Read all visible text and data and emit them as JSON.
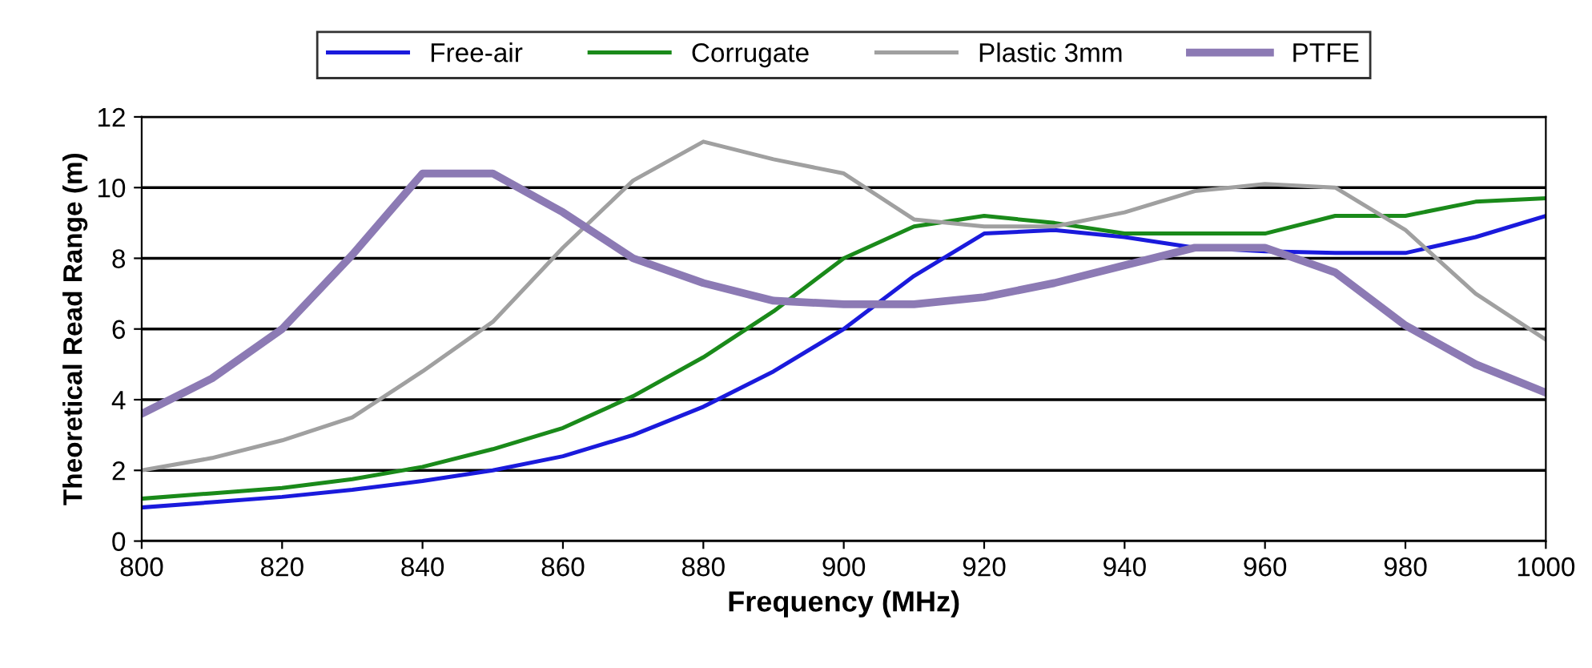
{
  "chart_data": {
    "type": "line",
    "xlabel": "Frequency (MHz)",
    "ylabel": "Theoretical Read Range (m)",
    "x": [
      800,
      810,
      820,
      830,
      840,
      850,
      860,
      870,
      880,
      890,
      900,
      910,
      920,
      930,
      940,
      950,
      960,
      970,
      980,
      990,
      1000
    ],
    "series": [
      {
        "name": "Free-air",
        "color": "#1a1adc",
        "values": [
          0.95,
          1.1,
          1.25,
          1.45,
          1.7,
          2.0,
          2.4,
          3.0,
          3.8,
          4.8,
          6.0,
          7.5,
          8.7,
          8.8,
          8.6,
          8.3,
          8.2,
          8.15,
          8.15,
          8.6,
          9.2
        ]
      },
      {
        "name": "Corrugate",
        "color": "#1a8a1a",
        "values": [
          1.2,
          1.35,
          1.5,
          1.75,
          2.1,
          2.6,
          3.2,
          4.1,
          5.2,
          6.5,
          8.0,
          8.9,
          9.2,
          9.0,
          8.7,
          8.7,
          8.7,
          9.2,
          9.2,
          9.6,
          9.7
        ]
      },
      {
        "name": "Plastic 3mm",
        "color": "#a0a0a0",
        "values": [
          2.0,
          2.35,
          2.85,
          3.5,
          4.8,
          6.2,
          8.3,
          10.2,
          11.3,
          10.8,
          10.4,
          9.1,
          8.9,
          8.9,
          9.3,
          9.9,
          10.1,
          10.0,
          8.8,
          7.0,
          5.7
        ]
      },
      {
        "name": "PTFE",
        "color": "#8c7ab4",
        "values": [
          3.6,
          4.6,
          6.0,
          8.1,
          10.4,
          10.4,
          9.3,
          8.0,
          7.3,
          6.8,
          6.7,
          6.7,
          6.9,
          7.3,
          7.8,
          8.3,
          8.3,
          7.6,
          6.1,
          5.0,
          4.2
        ]
      }
    ],
    "xlim": [
      800,
      1000
    ],
    "ylim": [
      0,
      12
    ],
    "xticks": [
      800,
      820,
      840,
      860,
      880,
      900,
      920,
      940,
      960,
      980,
      1000
    ],
    "yticks": [
      0,
      2,
      4,
      6,
      8,
      10,
      12
    ],
    "grid": "y",
    "legend": "top",
    "marker": "none",
    "line_style": "solid"
  }
}
